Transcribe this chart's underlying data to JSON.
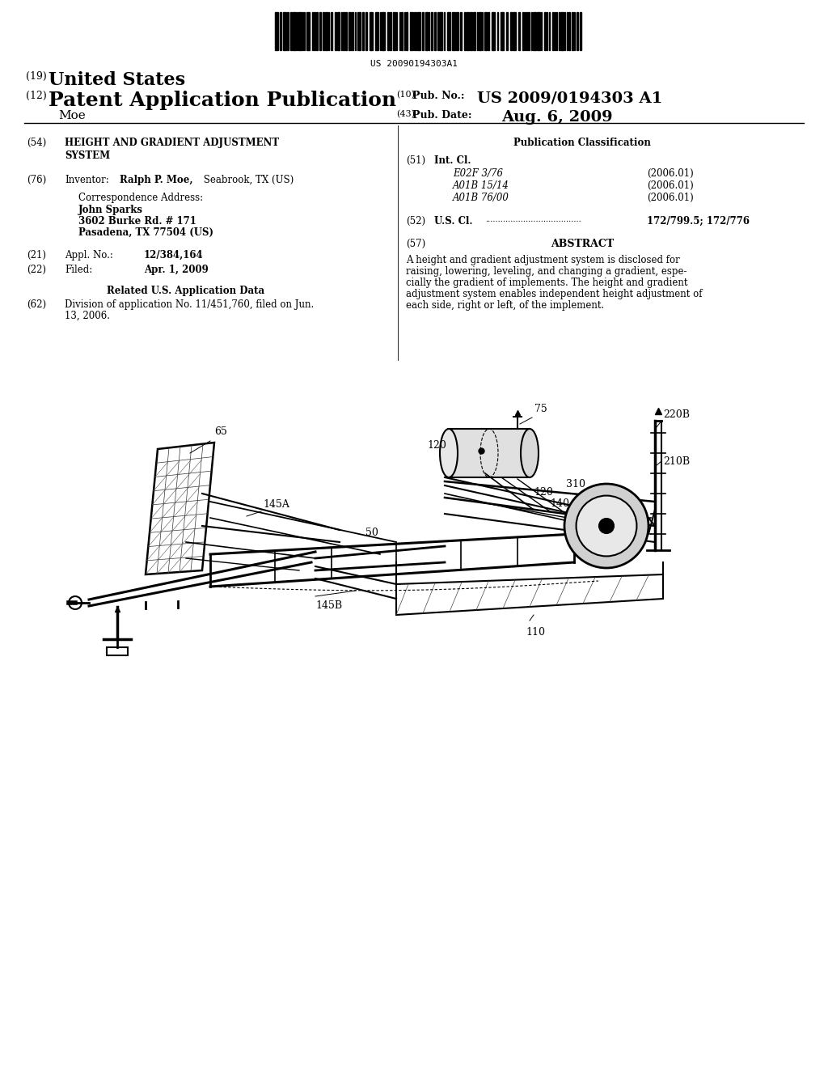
{
  "background_color": "#ffffff",
  "page_width": 10.24,
  "page_height": 13.2,
  "barcode_text": "US 20090194303A1",
  "header": {
    "line19_num": "(19)",
    "line19_text": "United States",
    "line12_num": "(12)",
    "line12_text": "Patent Application Publication",
    "applicant": "Moe",
    "pub_no_num": "(10)",
    "pub_no_label": "Pub. No.:",
    "pub_no_value": "US 2009/0194303 A1",
    "pub_date_num": "(43)",
    "pub_date_label": "Pub. Date:",
    "pub_date_value": "Aug. 6, 2009"
  },
  "left_col": {
    "title_num": "(54)",
    "title_line1": "HEIGHT AND GRADIENT ADJUSTMENT",
    "title_line2": "SYSTEM",
    "inventor_num": "(76)",
    "inventor_label": "Inventor:",
    "inventor_bold": "Ralph P. Moe,",
    "inventor_rest": " Seabrook, TX (US)",
    "corr_label": "Correspondence Address:",
    "corr_name": "John Sparks",
    "corr_addr1": "3602 Burke Rd. # 171",
    "corr_addr2": "Pasadena, TX 77504 (US)",
    "appl_num": "(21)",
    "appl_label": "Appl. No.:",
    "appl_value": "12/384,164",
    "filed_num": "(22)",
    "filed_label": "Filed:",
    "filed_value": "Apr. 1, 2009",
    "related_header": "Related U.S. Application Data",
    "div_num": "(62)",
    "div_line1": "Division of application No. 11/451,760, filed on Jun.",
    "div_line2": "13, 2006."
  },
  "right_col": {
    "pub_class_header": "Publication Classification",
    "int_cl_num": "(51)",
    "int_cl_label": "Int. Cl.",
    "int_cl_entries": [
      {
        "code": "E02F 3/76",
        "year": "(2006.01)"
      },
      {
        "code": "A01B 15/14",
        "year": "(2006.01)"
      },
      {
        "code": "A01B 76/00",
        "year": "(2006.01)"
      }
    ],
    "us_cl_num": "(52)",
    "us_cl_label": "U.S. Cl.",
    "us_cl_dots": "......................................",
    "us_cl_value": "172/799.5; 172/776",
    "abstract_num": "(57)",
    "abstract_header": "ABSTRACT",
    "abstract_lines": [
      "A height and gradient adjustment system is disclosed for",
      "raising, lowering, leveling, and changing a gradient, espe-",
      "cially the gradient of implements. The height and gradient",
      "adjustment system enables independent height adjustment of",
      "each side, right or left, of the implement."
    ]
  }
}
